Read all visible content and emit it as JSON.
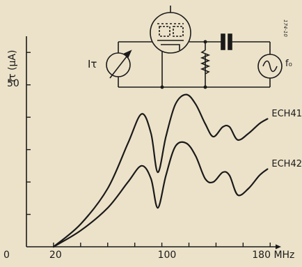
{
  "chart_data": {
    "type": "line",
    "title": "",
    "xlabel": "",
    "ylabel": "Iτ (μA)",
    "x_unit": "MHz",
    "x_tick_labels": [
      {
        "value": 0,
        "label": "0"
      },
      {
        "value": 20,
        "label": "20"
      },
      {
        "value": 100,
        "label": "100"
      },
      {
        "value": 180,
        "label": "180 MHz"
      }
    ],
    "y_tick_labels": [
      {
        "value": 0,
        "label": "0"
      },
      {
        "value": 50,
        "label": "50"
      }
    ],
    "xlim": [
      0,
      185
    ],
    "ylim": [
      0,
      65
    ],
    "grid": false,
    "series": [
      {
        "name": "ECH41",
        "x": [
          20,
          40,
          60,
          75,
          85,
          92,
          97,
          103,
          110,
          118,
          125,
          132,
          138,
          145,
          150,
          156,
          164,
          172,
          178
        ],
        "y": [
          0,
          7,
          18,
          32,
          41,
          35,
          23,
          34,
          44,
          47,
          44,
          38,
          34,
          37,
          37,
          33,
          35,
          38,
          39.5
        ]
      },
      {
        "name": "ECH42",
        "x": [
          20,
          40,
          60,
          75,
          85,
          92,
          97,
          103,
          110,
          118,
          125,
          132,
          138,
          145,
          150,
          156,
          164,
          172,
          178
        ],
        "y": [
          0,
          5,
          12,
          20,
          25,
          21,
          12,
          22,
          31,
          32,
          28,
          21,
          20,
          23,
          22,
          16,
          18,
          22,
          24
        ]
      }
    ]
  },
  "circuit": {
    "meter_label": "Iτ",
    "source_label": "f₀"
  },
  "figure_ref": "174-10"
}
